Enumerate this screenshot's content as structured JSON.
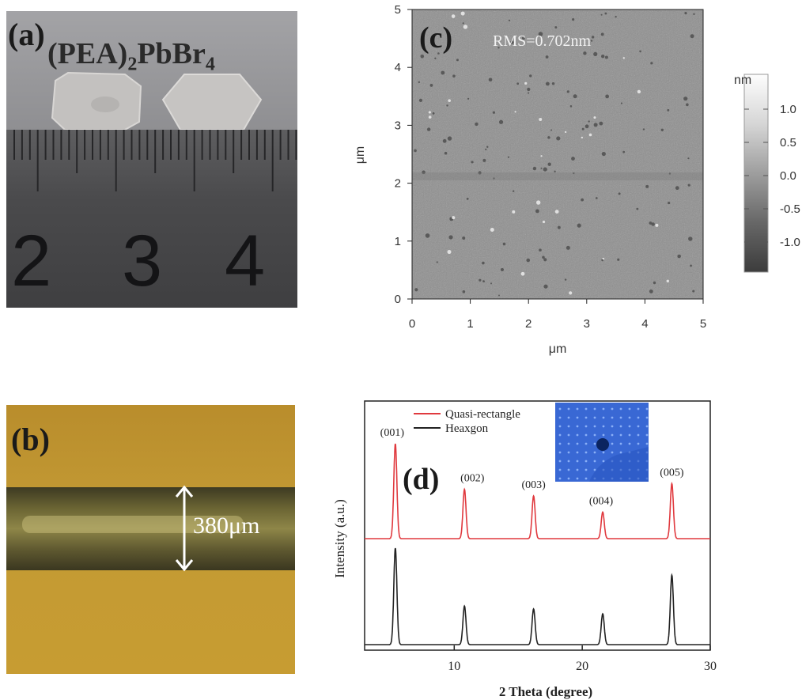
{
  "panel_a": {
    "label": "(a)",
    "compound": "(PEA)",
    "compound_sub": "2",
    "compound_mid": "PbBr",
    "compound_sub2": "4",
    "ruler_numbers": [
      "2",
      "3",
      "4"
    ]
  },
  "panel_b": {
    "label": "(b)",
    "width_annotation": "380μm"
  },
  "panel_c": {
    "label": "(c)",
    "rms_text": "RMS=0.702nm",
    "x_label": "μm",
    "y_label": "μm",
    "x_ticks": [
      "0",
      "1",
      "2",
      "3",
      "4",
      "5"
    ],
    "y_ticks": [
      "0",
      "1",
      "2",
      "3",
      "4",
      "5"
    ],
    "colorbar_unit": "nm",
    "colorbar_ticks": [
      "1.0",
      "0.5",
      "0.0",
      "-0.5",
      "-1.0"
    ]
  },
  "chart_data": {
    "type": "line",
    "title": "",
    "xlabel": "2 Theta (degree)",
    "ylabel": "Intensity (a.u.)",
    "xlim": [
      3,
      30
    ],
    "x_ticks": [
      "10",
      "20",
      "30"
    ],
    "panel_label": "(d)",
    "series": [
      {
        "name": "Quasi-rectangle",
        "color": "#e0393e",
        "peaks_x": [
          5.4,
          10.8,
          16.2,
          21.6,
          27.0
        ],
        "peaks_rel_height": [
          1.0,
          0.52,
          0.45,
          0.28,
          0.58
        ]
      },
      {
        "name": "Heaxgon",
        "color": "#222222",
        "peaks_x": [
          5.4,
          10.8,
          16.2,
          21.6,
          27.0
        ],
        "peaks_rel_height": [
          1.0,
          0.4,
          0.37,
          0.32,
          0.72
        ]
      }
    ],
    "peak_labels": [
      "(001)",
      "(002)",
      "(003)",
      "(004)",
      "(005)"
    ]
  }
}
